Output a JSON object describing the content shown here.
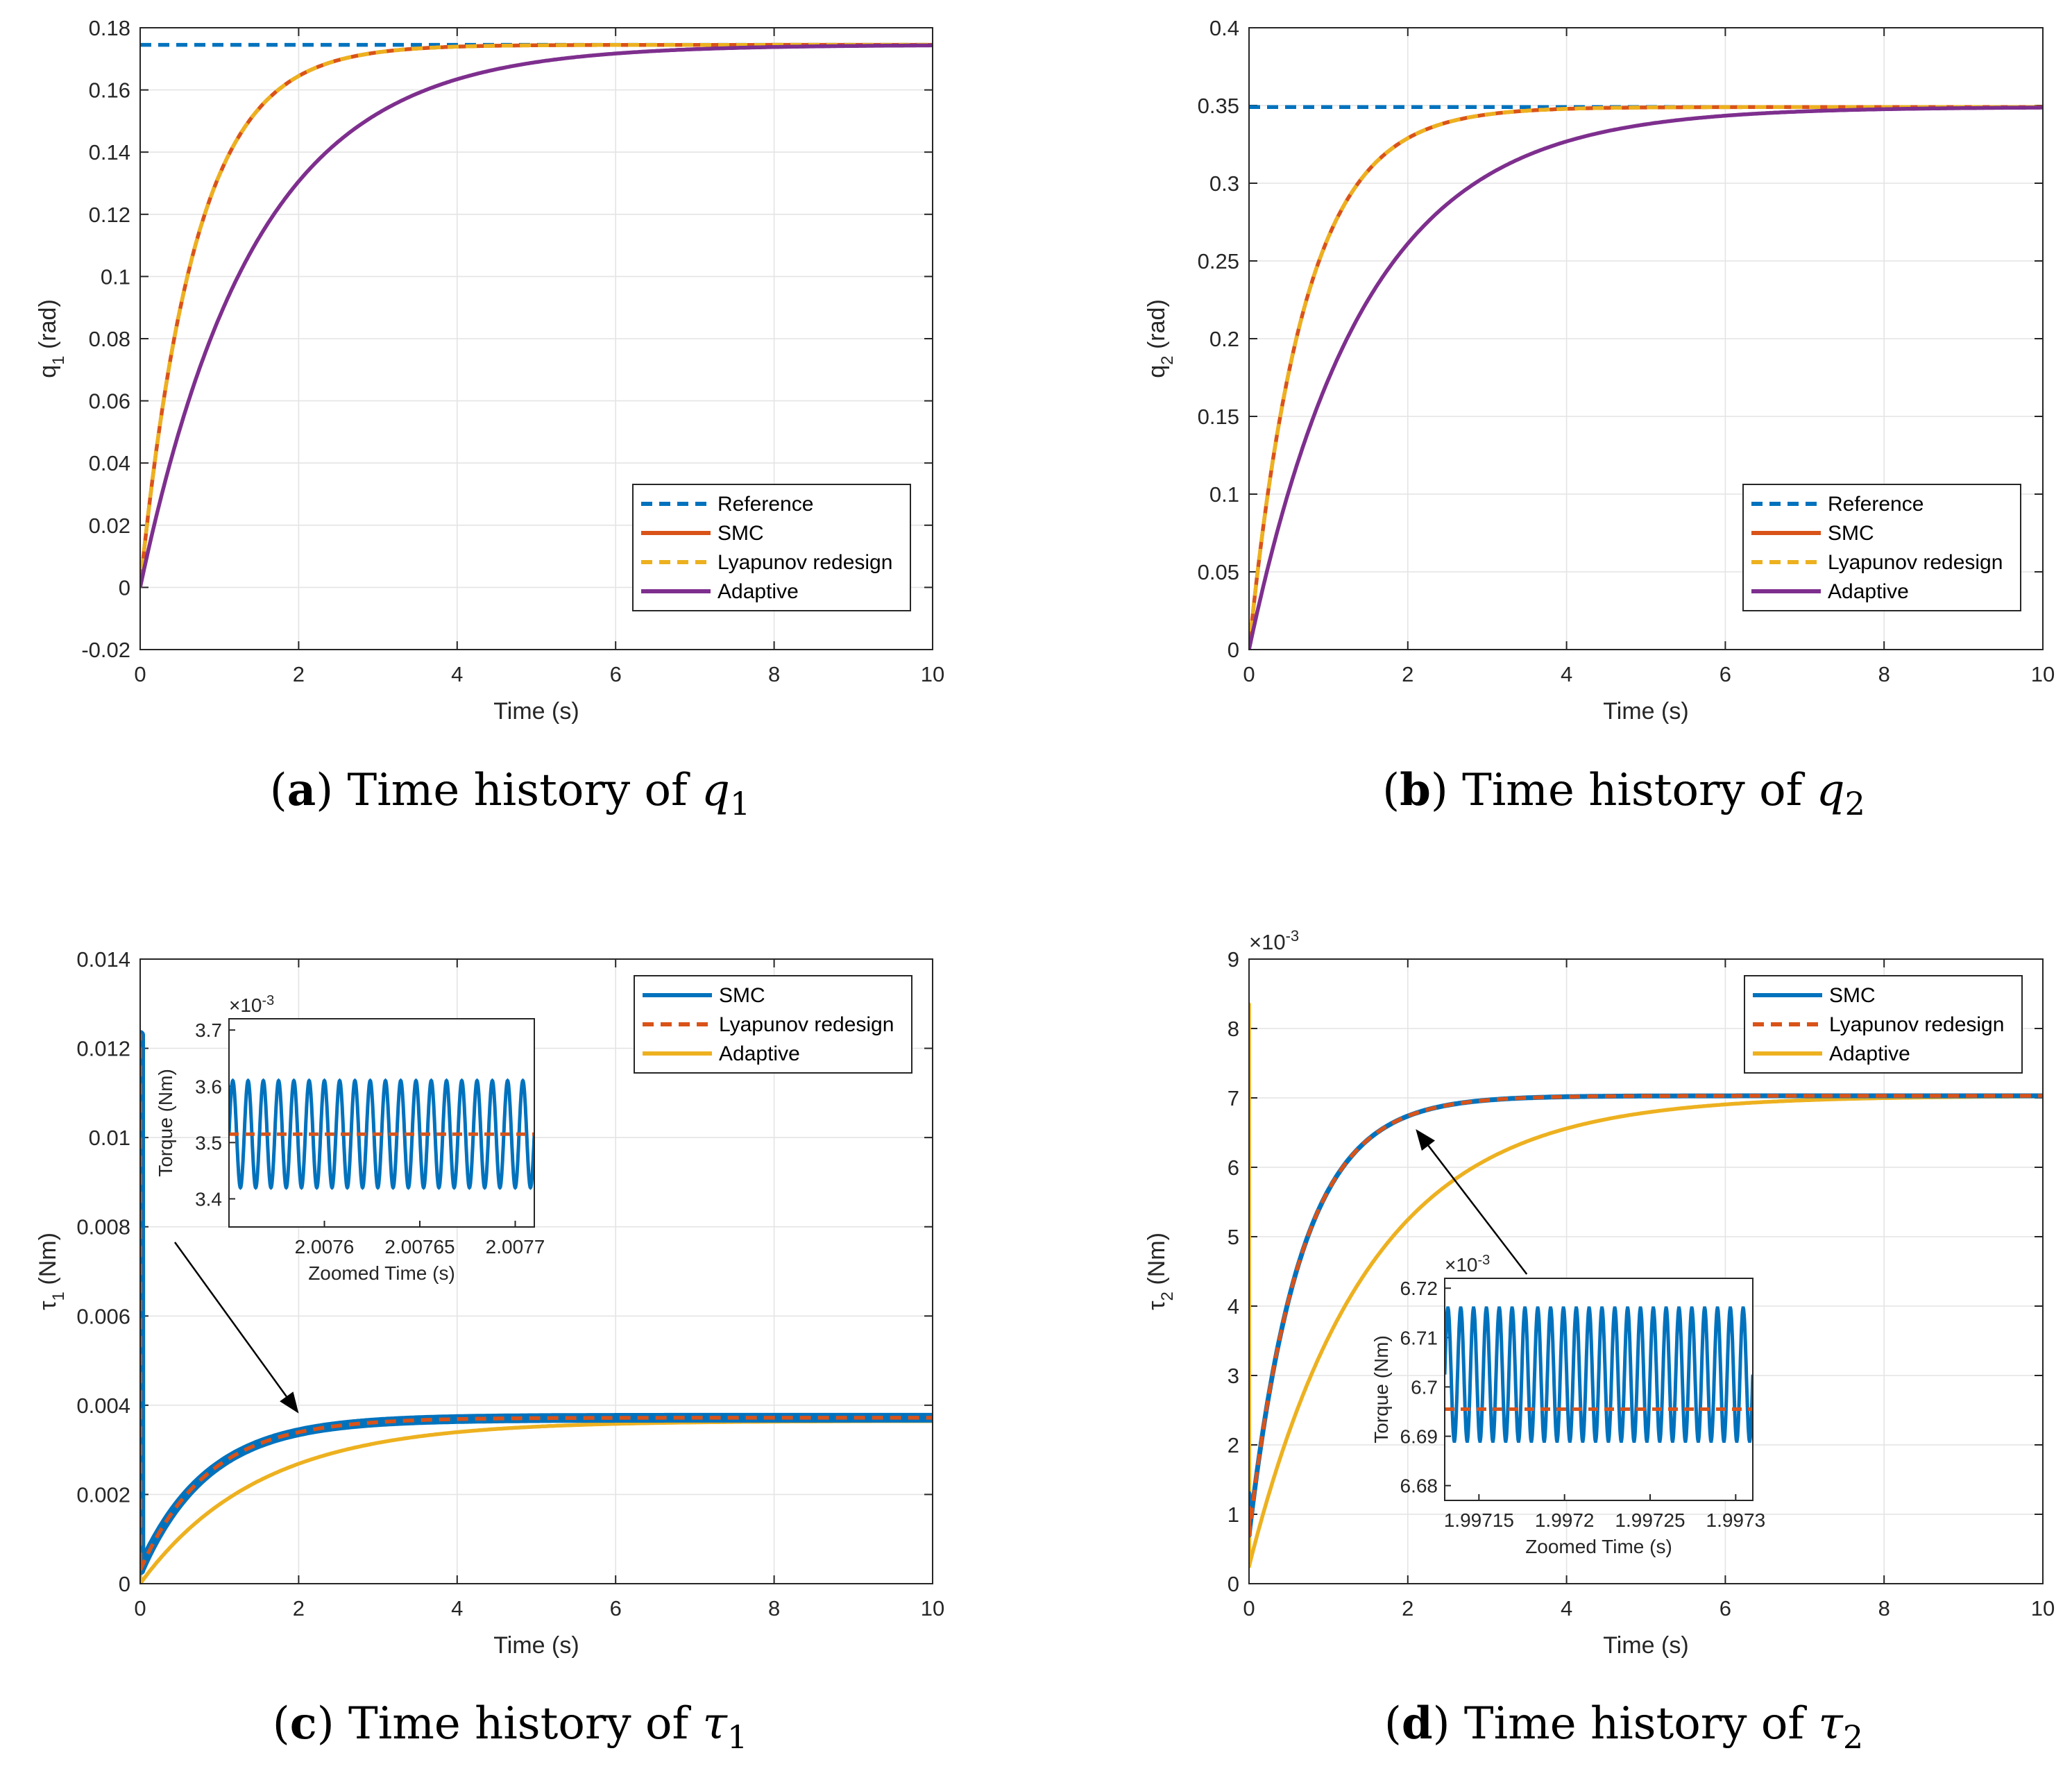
{
  "colors": {
    "reference": "#0072BD",
    "smc": "#D95319",
    "lyapunov": "#EDB120",
    "adaptive": "#7E2F8E",
    "smc_torque": "#0072BD",
    "lyap_torque": "#D95319",
    "adapt_torque": "#EDB120"
  },
  "chart_data": [
    {
      "id": "a",
      "type": "line",
      "caption_letter": "a",
      "caption_text": "Time history of",
      "caption_sym": "q",
      "caption_sub": "1",
      "xlabel": "Time (s)",
      "ylabel_main": "q",
      "ylabel_sub": "1",
      "ylabel_rest": " (rad)",
      "xlim": [
        0,
        10
      ],
      "ylim": [
        -0.02,
        0.18
      ],
      "xticks": [
        0,
        2,
        4,
        6,
        8,
        10
      ],
      "xtick_labels": [
        "0",
        "2",
        "4",
        "6",
        "8",
        "10"
      ],
      "yticks": [
        -0.02,
        0,
        0.02,
        0.04,
        0.06,
        0.08,
        0.1,
        0.12,
        0.14,
        0.16,
        0.18
      ],
      "ytick_labels": [
        "-0.02",
        "0",
        "0.02",
        "0.04",
        "0.06",
        "0.08",
        "0.1",
        "0.12",
        "0.14",
        "0.16",
        "0.18"
      ],
      "legend": [
        "Reference",
        "SMC",
        "Lyapunov redesign",
        "Adaptive"
      ],
      "legend_position": "lower-right",
      "series": [
        {
          "name": "Reference",
          "style": "dashed",
          "final": 0.1745,
          "tau": 0
        },
        {
          "name": "SMC",
          "style": "solid",
          "final": 0.1745,
          "tau": 0.7
        },
        {
          "name": "Lyapunov redesign",
          "style": "dashed",
          "final": 0.1745,
          "tau": 0.7
        },
        {
          "name": "Adaptive",
          "style": "solid",
          "final": 0.1745,
          "tau": 1.45
        }
      ]
    },
    {
      "id": "b",
      "type": "line",
      "caption_letter": "b",
      "caption_text": "Time history of",
      "caption_sym": "q",
      "caption_sub": "2",
      "xlabel": "Time (s)",
      "ylabel_main": "q",
      "ylabel_sub": "2",
      "ylabel_rest": " (rad)",
      "xlim": [
        0,
        10
      ],
      "ylim": [
        0,
        0.4
      ],
      "xticks": [
        0,
        2,
        4,
        6,
        8,
        10
      ],
      "xtick_labels": [
        "0",
        "2",
        "4",
        "6",
        "8",
        "10"
      ],
      "yticks": [
        0,
        0.05,
        0.1,
        0.15,
        0.2,
        0.25,
        0.3,
        0.35,
        0.4
      ],
      "ytick_labels": [
        "0",
        "0.05",
        "0.1",
        "0.15",
        "0.2",
        "0.25",
        "0.3",
        "0.35",
        "0.4"
      ],
      "legend": [
        "Reference",
        "SMC",
        "Lyapunov redesign",
        "Adaptive"
      ],
      "legend_position": "lower-right",
      "series": [
        {
          "name": "Reference",
          "style": "dashed",
          "final": 0.349,
          "tau": 0
        },
        {
          "name": "SMC",
          "style": "solid",
          "final": 0.349,
          "tau": 0.7
        },
        {
          "name": "Lyapunov redesign",
          "style": "dashed",
          "final": 0.349,
          "tau": 0.7
        },
        {
          "name": "Adaptive",
          "style": "solid",
          "final": 0.349,
          "tau": 1.45
        }
      ]
    },
    {
      "id": "c",
      "type": "line",
      "caption_letter": "c",
      "caption_text": "Time history of",
      "caption_sym": "τ",
      "caption_sub": "1",
      "xlabel": "Time (s)",
      "ylabel_main": "τ",
      "ylabel_sub": "1",
      "ylabel_rest": " (Nm)",
      "xlim": [
        0,
        10
      ],
      "ylim": [
        0,
        0.014
      ],
      "xticks": [
        0,
        2,
        4,
        6,
        8,
        10
      ],
      "xtick_labels": [
        "0",
        "2",
        "4",
        "6",
        "8",
        "10"
      ],
      "yticks": [
        0,
        0.002,
        0.004,
        0.006,
        0.008,
        0.01,
        0.012,
        0.014
      ],
      "ytick_labels": [
        "0",
        "0.002",
        "0.004",
        "0.006",
        "0.008",
        "0.01",
        "0.012",
        "0.014"
      ],
      "legend": [
        "SMC",
        "Lyapunov redesign",
        "Adaptive"
      ],
      "legend_position": "top-right",
      "series": [
        {
          "name": "SMC",
          "style": "solid",
          "final": 0.00372,
          "tau": 0.85,
          "start": 0.0003,
          "spike": 0.0123,
          "spike_low": 0.0053,
          "chatter": 0.00012
        },
        {
          "name": "Lyapunov redesign",
          "style": "dashed",
          "final": 0.00372,
          "tau": 0.85,
          "start": 0.0003,
          "spike": 0.0123,
          "spike_low": 0.0053
        },
        {
          "name": "Adaptive",
          "style": "solid",
          "final": 0.00365,
          "tau": 1.5,
          "start": 0.0,
          "spike": 0.0047,
          "spike_low": 0.0
        }
      ],
      "inset": {
        "xlabel": "Zoomed Time (s)",
        "ylabel": "Torque (Nm)",
        "exponent": "×10-3",
        "xlim": [
          2.00755,
          2.00771
        ],
        "ylim": [
          3.35,
          3.72
        ],
        "xticks": [
          2.0076,
          2.00765,
          2.0077
        ],
        "xtick_labels": [
          "2.0076",
          "2.00765",
          "2.0077"
        ],
        "yticks": [
          3.4,
          3.5,
          3.6,
          3.7
        ],
        "ytick_labels": [
          "3.4",
          "3.5",
          "3.6",
          "3.7"
        ],
        "smc_center": 3.515,
        "smc_amplitude": 0.095,
        "smc_cycles": 20,
        "lyapunov_value": 3.515,
        "arrow_target": [
          2.0,
          0.0036
        ]
      }
    },
    {
      "id": "d",
      "type": "line",
      "caption_letter": "d",
      "caption_text": "Time history of",
      "caption_sym": "τ",
      "caption_sub": "2",
      "xlabel": "Time (s)",
      "ylabel_main": "τ",
      "ylabel_sub": "2",
      "ylabel_rest": " (Nm)",
      "exponent": "×10-3",
      "xlim": [
        0,
        10
      ],
      "ylim": [
        0,
        9
      ],
      "xticks": [
        0,
        2,
        4,
        6,
        8,
        10
      ],
      "xtick_labels": [
        "0",
        "2",
        "4",
        "6",
        "8",
        "10"
      ],
      "yticks": [
        0,
        1,
        2,
        3,
        4,
        5,
        6,
        7,
        8,
        9
      ],
      "ytick_labels": [
        "0",
        "1",
        "2",
        "3",
        "4",
        "5",
        "6",
        "7",
        "8",
        "9"
      ],
      "legend": [
        "SMC",
        "Lyapunov redesign",
        "Adaptive"
      ],
      "legend_position": "top-right",
      "series": [
        {
          "name": "SMC",
          "style": "solid",
          "final": 7.03,
          "tau": 0.65,
          "start": 0.7,
          "spike": 1.3,
          "spike_low": 0.7
        },
        {
          "name": "Lyapunov redesign",
          "style": "dashed",
          "final": 7.03,
          "tau": 0.65,
          "start": 0.7,
          "spike": 1.1,
          "spike_low": 0.7
        },
        {
          "name": "Adaptive",
          "style": "solid",
          "final": 7.03,
          "tau": 1.5,
          "start": 0.25,
          "spike": 8.35,
          "spike_low": 0.25
        }
      ],
      "inset": {
        "xlabel": "Zoomed Time (s)",
        "ylabel": "Torque (Nm)",
        "exponent": "×10-3",
        "xlim": [
          1.99713,
          1.99731
        ],
        "ylim": [
          6.677,
          6.722
        ],
        "xticks": [
          1.99715,
          1.9972,
          1.99725,
          1.9973
        ],
        "xtick_labels": [
          "1.99715",
          "1.9972",
          "1.99725",
          "1.9973"
        ],
        "yticks": [
          6.68,
          6.69,
          6.7,
          6.71,
          6.72
        ],
        "ytick_labels": [
          "6.68",
          "6.69",
          "6.7",
          "6.71",
          "6.72"
        ],
        "smc_center": 6.7025,
        "smc_amplitude": 0.0135,
        "smc_cycles": 24,
        "lyapunov_value": 6.6955,
        "arrow_target": [
          2.1,
          6.65
        ]
      }
    }
  ]
}
